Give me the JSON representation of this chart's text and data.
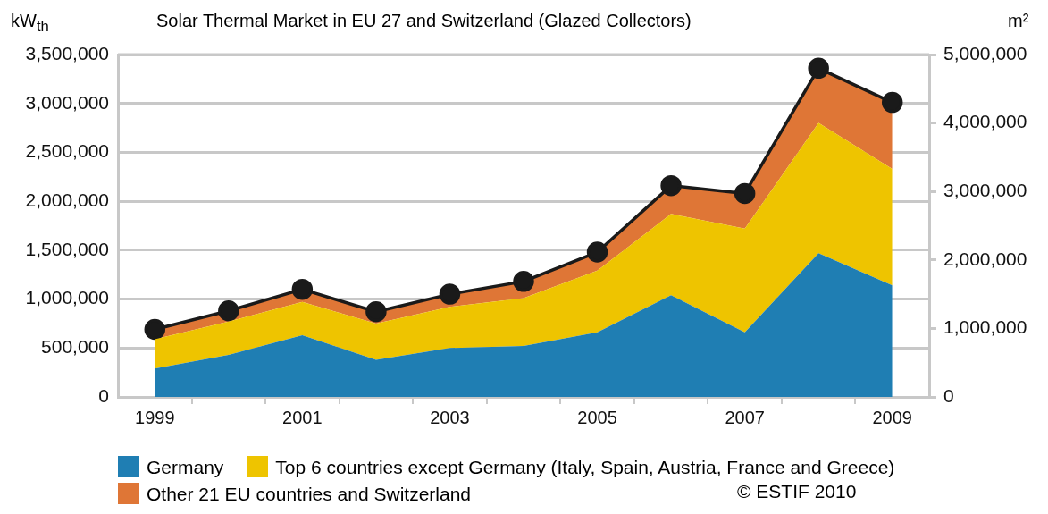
{
  "chart_data": {
    "type": "area",
    "title": "Solar Thermal Market in EU 27 and Switzerland (Glazed Collectors)",
    "ylabel": "kW$_{th}$",
    "y2label": "m²",
    "categories": [
      "1999",
      null,
      "2001",
      null,
      "2003",
      null,
      "2005",
      null,
      "2007",
      null,
      "2009"
    ],
    "stacked": true,
    "series": [
      {
        "name": "Germany",
        "color": "#1f7eb3",
        "values": [
          290000,
          430000,
          630000,
          380000,
          500000,
          520000,
          660000,
          1040000,
          660000,
          1470000,
          1140000
        ]
      },
      {
        "name": "Top 6 countries except Germany (Italy, Spain, Austria, France and Greece)",
        "color": "#eec400",
        "values": [
          300000,
          340000,
          340000,
          370000,
          420000,
          490000,
          630000,
          830000,
          1060000,
          1330000,
          1190000
        ]
      },
      {
        "name": "Other 21 EU countries and Switzerland",
        "color": "#df7636",
        "marker": "circle",
        "values": [
          100000,
          110000,
          130000,
          120000,
          130000,
          170000,
          190000,
          290000,
          360000,
          560000,
          680000
        ]
      }
    ],
    "ylim": [
      0,
      3500000
    ],
    "yticks": [
      {
        "value": 0,
        "label": "0"
      },
      {
        "value": 500000,
        "label": "500,000"
      },
      {
        "value": 1000000,
        "label": "1,000,000"
      },
      {
        "value": 1500000,
        "label": "1,500,000"
      },
      {
        "value": 2000000,
        "label": "2,000,000"
      },
      {
        "value": 2500000,
        "label": "2,500,000"
      },
      {
        "value": 3000000,
        "label": "3,000,000"
      },
      {
        "value": 3500000,
        "label": "3,500,000"
      }
    ],
    "y2lim": [
      0,
      5000000
    ],
    "y2ticks": [
      {
        "value": 0,
        "label": "0"
      },
      {
        "value": 1000000,
        "label": "1,000,000"
      },
      {
        "value": 2000000,
        "label": "2,000,000"
      },
      {
        "value": 3000000,
        "label": "3,000,000"
      },
      {
        "value": 4000000,
        "label": "4,000,000"
      },
      {
        "value": 5000000,
        "label": "5,000,000"
      }
    ],
    "grid": "y",
    "legend": "bottom",
    "annotations": [
      "© ESTIF 2010"
    ]
  }
}
